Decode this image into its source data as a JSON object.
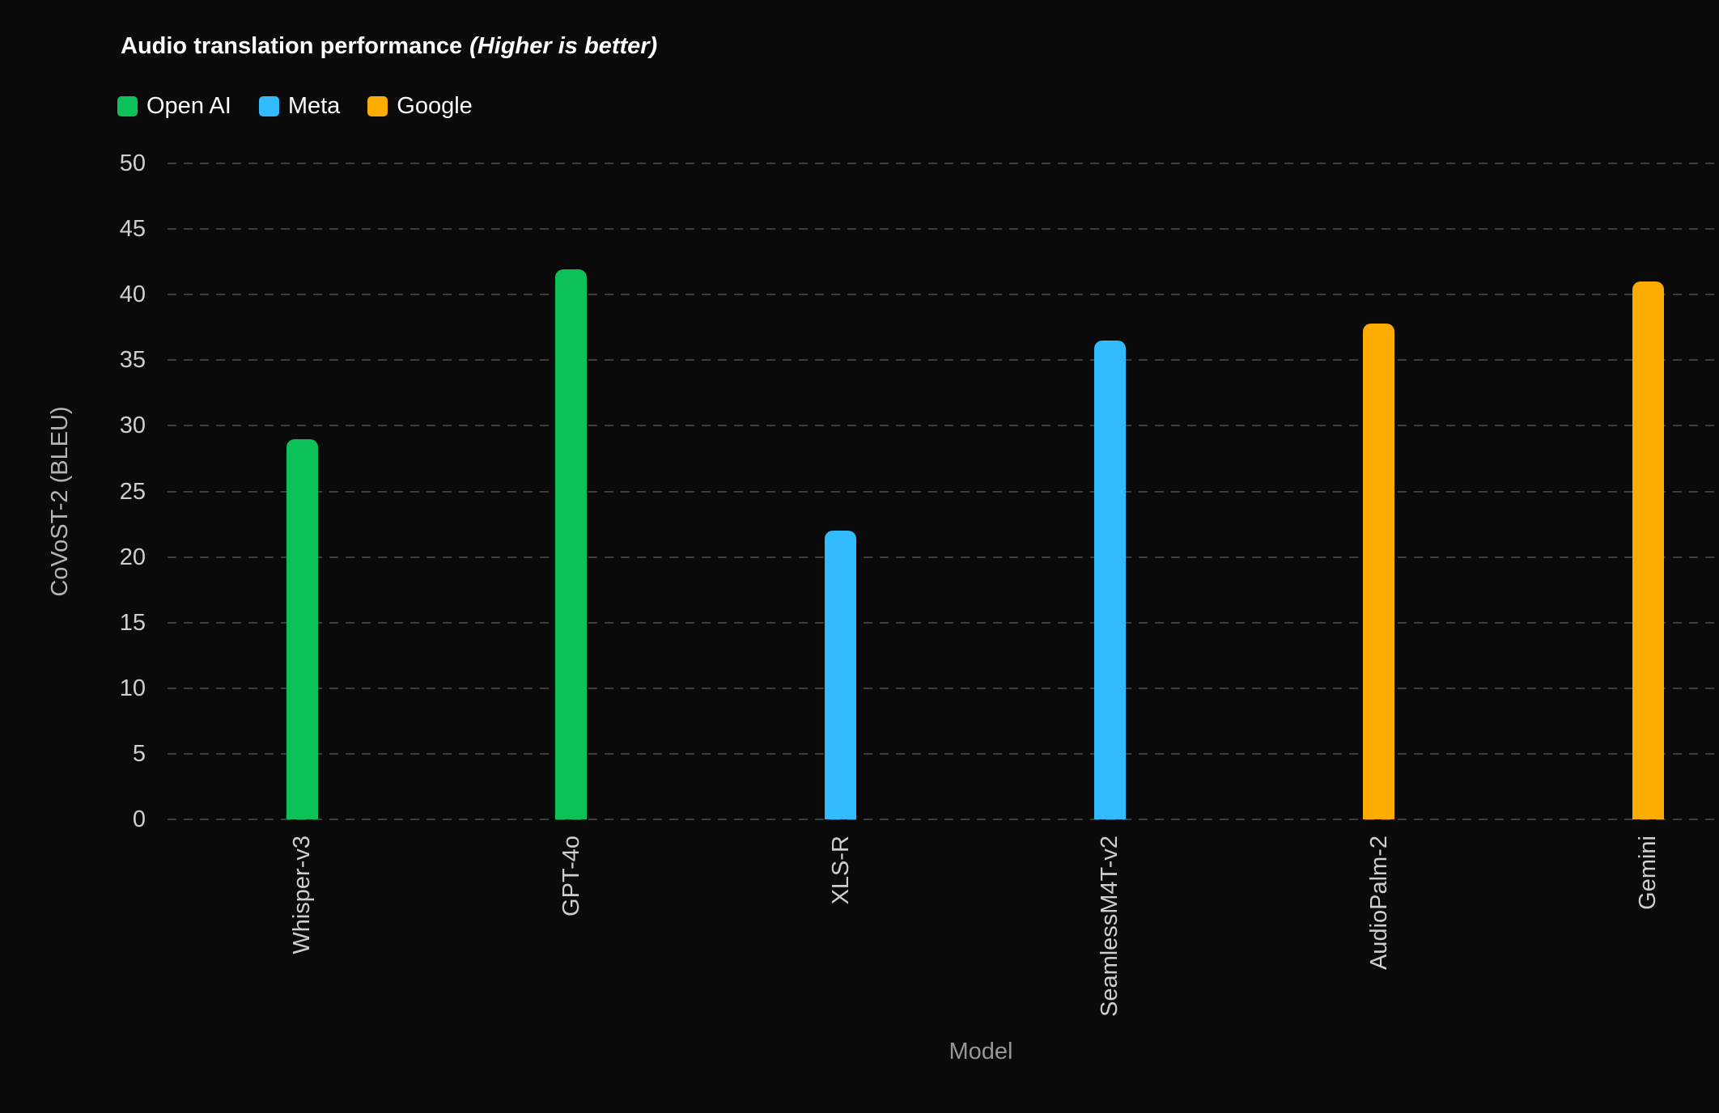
{
  "page": {
    "background_color": "#0a0a0b"
  },
  "chart_data": {
    "type": "bar",
    "title": "Audio translation performance",
    "title_note": "(Higher is better)",
    "xlabel": "Model",
    "ylabel": "CoVoST-2 (BLEU)",
    "ylim": [
      0,
      50
    ],
    "ytick_step": 5,
    "ytick_labels": [
      "0",
      "5",
      "10",
      "15",
      "20",
      "25",
      "30",
      "35",
      "40",
      "45",
      "50"
    ],
    "grid": "horizontal-dashed",
    "legend_position": "top-left",
    "categories": [
      "Whisper-v3",
      "GPT-4o",
      "XLS-R",
      "SeamlessM4T-v2",
      "AudioPalm-2",
      "Gemini"
    ],
    "values": [
      29,
      41.9,
      22,
      36.5,
      37.8,
      41
    ],
    "series_by_bar": [
      "Open AI",
      "Open AI",
      "Meta",
      "Meta",
      "Google",
      "Google"
    ],
    "legend": [
      {
        "label": "Open AI",
        "color": "#0CC157"
      },
      {
        "label": "Meta",
        "color": "#31BAFC"
      },
      {
        "label": "Google",
        "color": "#FCAC00"
      }
    ],
    "colors": {
      "gridline": "#3e3e3e",
      "tick_text": "#cfcfcf",
      "y_axis_title_text": "#b5b5b5",
      "x_axis_title_text": "#979797",
      "title_text": "#ffffff"
    }
  }
}
